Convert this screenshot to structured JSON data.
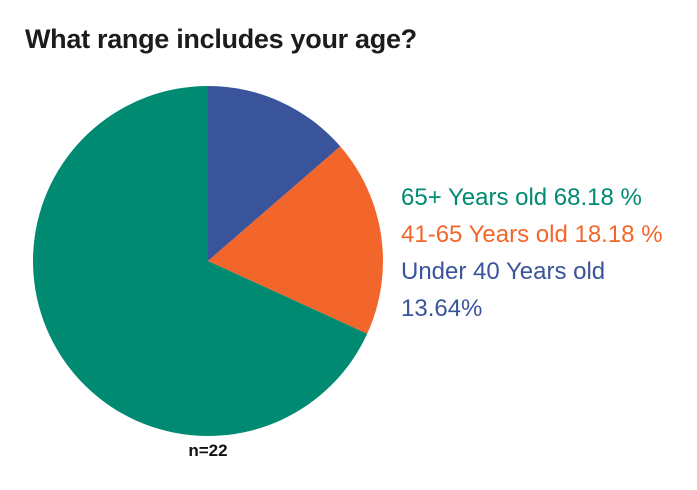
{
  "chart_data": {
    "type": "pie",
    "title": "What range includes your age?",
    "sample_note": "n=22",
    "start_angle": "top",
    "direction": "clockwise",
    "legend_position": "right",
    "slices_draw_order": [
      {
        "name": "under-40",
        "label": "Under 40 Years old",
        "pct": 13.64,
        "color": "#3A549C"
      },
      {
        "name": "41-65",
        "label": "41-65 Years old",
        "pct": 18.18,
        "color": "#F2662B"
      },
      {
        "name": "65-plus",
        "label": "65+ Years old",
        "pct": 68.18,
        "color": "#008A72"
      }
    ],
    "legend": [
      {
        "name": "65-plus",
        "text": "65+ Years old 68.18 %",
        "color": "#008A72"
      },
      {
        "name": "41-65",
        "text": "41-65 Years old 18.18 %",
        "color": "#F2662B"
      },
      {
        "name": "under-40",
        "text": "Under 40 Years old\n13.64%",
        "color": "#3A549C"
      }
    ]
  }
}
